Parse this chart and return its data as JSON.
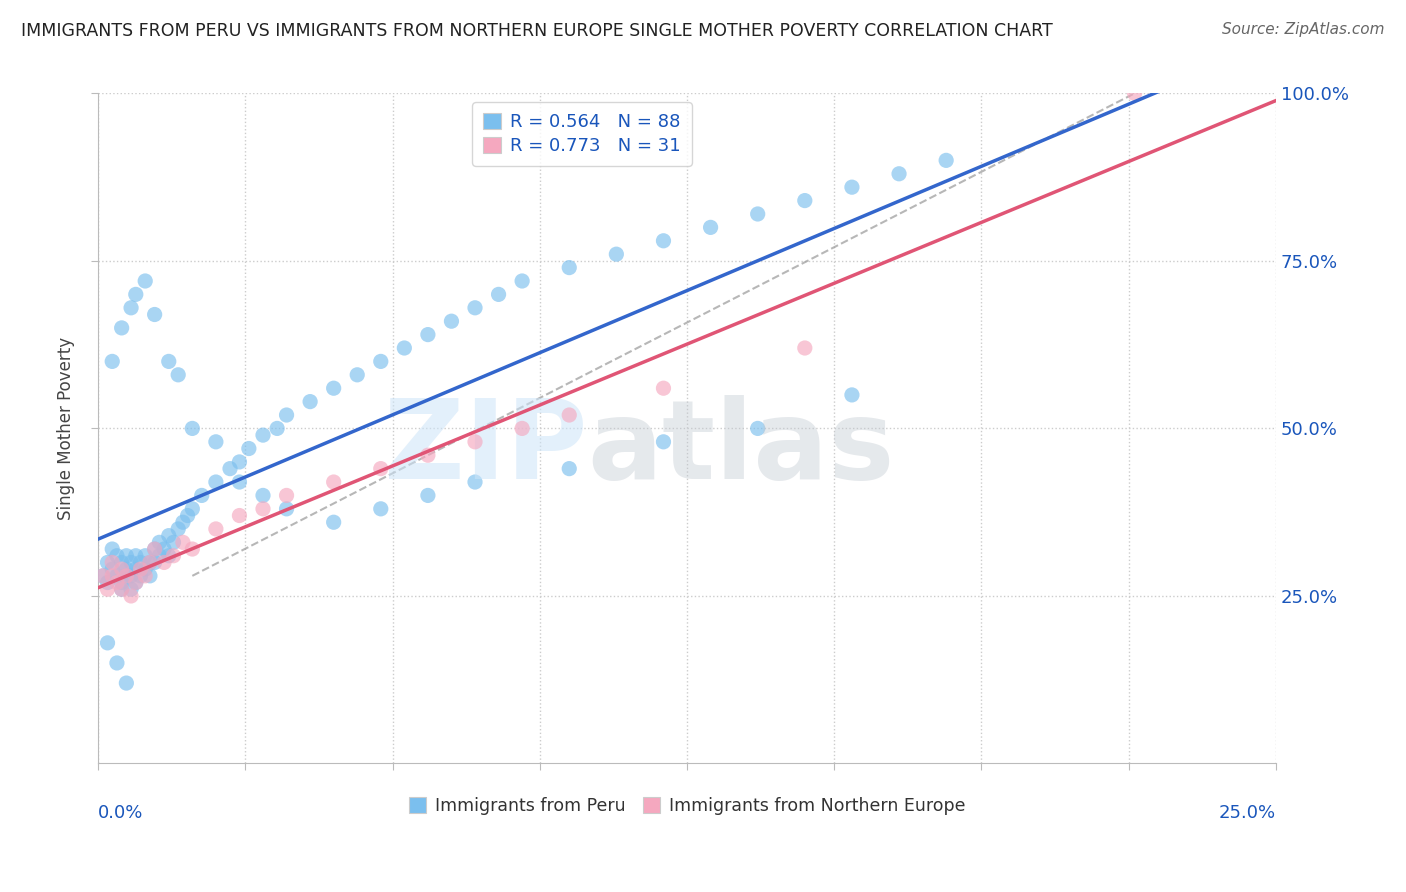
{
  "title": "IMMIGRANTS FROM PERU VS IMMIGRANTS FROM NORTHERN EUROPE SINGLE MOTHER POVERTY CORRELATION CHART",
  "source": "Source: ZipAtlas.com",
  "ylabel": "Single Mother Poverty",
  "legend1_label": "Immigrants from Peru",
  "legend2_label": "Immigrants from Northern Europe",
  "R1": "0.564",
  "N1": "88",
  "R2": "0.773",
  "N2": "31",
  "blue_color": "#7bbfee",
  "pink_color": "#f5a8bf",
  "blue_line_color": "#3366cc",
  "pink_line_color": "#e05575",
  "text_blue": "#1a56bb",
  "grid_color": "#cccccc",
  "peru_x": [
    0.001,
    0.002,
    0.002,
    0.003,
    0.003,
    0.004,
    0.004,
    0.005,
    0.005,
    0.005,
    0.006,
    0.006,
    0.006,
    0.007,
    0.007,
    0.007,
    0.008,
    0.008,
    0.008,
    0.009,
    0.009,
    0.01,
    0.01,
    0.011,
    0.011,
    0.012,
    0.012,
    0.013,
    0.013,
    0.014,
    0.015,
    0.015,
    0.016,
    0.017,
    0.018,
    0.019,
    0.02,
    0.022,
    0.025,
    0.028,
    0.03,
    0.032,
    0.035,
    0.038,
    0.04,
    0.045,
    0.05,
    0.055,
    0.06,
    0.065,
    0.07,
    0.075,
    0.08,
    0.085,
    0.09,
    0.1,
    0.11,
    0.12,
    0.13,
    0.14,
    0.15,
    0.16,
    0.17,
    0.18,
    0.003,
    0.005,
    0.007,
    0.008,
    0.01,
    0.012,
    0.015,
    0.017,
    0.02,
    0.025,
    0.03,
    0.035,
    0.04,
    0.05,
    0.06,
    0.07,
    0.08,
    0.1,
    0.12,
    0.14,
    0.16,
    0.002,
    0.004,
    0.006
  ],
  "peru_y": [
    0.28,
    0.3,
    0.27,
    0.32,
    0.29,
    0.28,
    0.31,
    0.27,
    0.3,
    0.26,
    0.29,
    0.28,
    0.31,
    0.3,
    0.28,
    0.26,
    0.29,
    0.27,
    0.31,
    0.28,
    0.3,
    0.29,
    0.31,
    0.3,
    0.28,
    0.32,
    0.3,
    0.31,
    0.33,
    0.32,
    0.31,
    0.34,
    0.33,
    0.35,
    0.36,
    0.37,
    0.38,
    0.4,
    0.42,
    0.44,
    0.45,
    0.47,
    0.49,
    0.5,
    0.52,
    0.54,
    0.56,
    0.58,
    0.6,
    0.62,
    0.64,
    0.66,
    0.68,
    0.7,
    0.72,
    0.74,
    0.76,
    0.78,
    0.8,
    0.82,
    0.84,
    0.86,
    0.88,
    0.9,
    0.6,
    0.65,
    0.68,
    0.7,
    0.72,
    0.67,
    0.6,
    0.58,
    0.5,
    0.48,
    0.42,
    0.4,
    0.38,
    0.36,
    0.38,
    0.4,
    0.42,
    0.44,
    0.48,
    0.5,
    0.55,
    0.18,
    0.15,
    0.12
  ],
  "ne_x": [
    0.001,
    0.002,
    0.003,
    0.003,
    0.004,
    0.005,
    0.005,
    0.006,
    0.007,
    0.008,
    0.009,
    0.01,
    0.011,
    0.012,
    0.014,
    0.016,
    0.018,
    0.02,
    0.025,
    0.03,
    0.035,
    0.04,
    0.05,
    0.06,
    0.07,
    0.08,
    0.09,
    0.1,
    0.12,
    0.15,
    0.22
  ],
  "ne_y": [
    0.28,
    0.26,
    0.3,
    0.28,
    0.27,
    0.29,
    0.26,
    0.28,
    0.25,
    0.27,
    0.29,
    0.28,
    0.3,
    0.32,
    0.3,
    0.31,
    0.33,
    0.32,
    0.35,
    0.37,
    0.38,
    0.4,
    0.42,
    0.44,
    0.46,
    0.48,
    0.5,
    0.52,
    0.56,
    0.62,
    1.0
  ],
  "xlim": [
    0,
    0.25
  ],
  "ylim": [
    0,
    1.0
  ],
  "yticks": [
    0.25,
    0.5,
    0.75,
    1.0
  ],
  "ytick_labels": [
    "25.0%",
    "50.0%",
    "75.0%",
    "100.0%"
  ],
  "num_xticks": 9
}
